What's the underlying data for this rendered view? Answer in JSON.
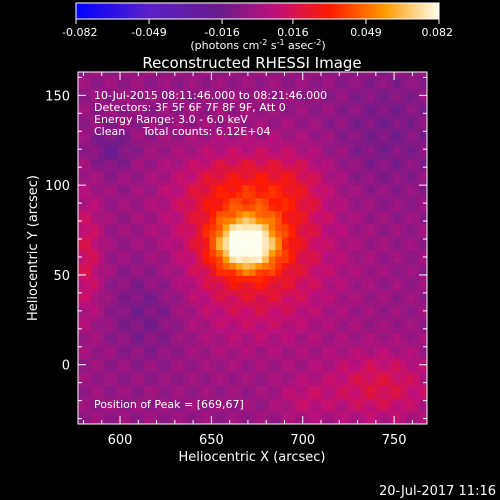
{
  "chart_data": {
    "type": "heatmap",
    "title": "Reconstructed RHESSI Image",
    "xlabel": "Heliocentric X (arcsec)",
    "ylabel": "Heliocentric Y (arcsec)",
    "xlim": [
      577,
      768
    ],
    "ylim": [
      -33,
      163
    ],
    "xticks": [
      600,
      650,
      700,
      750
    ],
    "yticks": [
      0,
      50,
      100,
      150
    ],
    "colorbar": {
      "range": [
        -0.082,
        0.082
      ],
      "tick_labels": [
        "-0.082",
        "-0.049",
        "-0.016",
        "0.016",
        "0.049",
        "0.082"
      ],
      "tick_values": [
        -0.082,
        -0.049,
        -0.016,
        0.016,
        0.049,
        0.082
      ],
      "unit_main": "(photons cm",
      "unit_exp1": "-2",
      "unit_mid": " s",
      "unit_exp2": "-1",
      "unit_tail": " asec",
      "unit_exp3": "-2",
      "unit_close": ")"
    },
    "annotations": [
      "10-Jul-2015 08:11:46.000 to 08:21:46.000",
      "Detectors: 3F 5F 6F 7F 8F 9F, Att 0",
      "Energy Range: 3.0 - 6.0 keV",
      "Clean     Total counts: 6.12E+04"
    ],
    "peak_label": "Position of Peak = [669,67]",
    "peak": [
      669,
      67
    ],
    "sources": [
      {
        "x": 669,
        "y": 67,
        "sx": 12,
        "sy": 10,
        "amp": 0.072
      },
      {
        "x": 675,
        "y": 62,
        "sx": 28,
        "sy": 30,
        "amp": 0.032
      },
      {
        "x": 662,
        "y": 96,
        "sx": 22,
        "sy": 16,
        "amp": 0.022
      },
      {
        "x": 695,
        "y": 100,
        "sx": 14,
        "sy": 14,
        "amp": 0.012
      },
      {
        "x": 742,
        "y": -12,
        "sx": 22,
        "sy": 14,
        "amp": 0.022
      },
      {
        "x": 700,
        "y": -20,
        "sx": 10,
        "sy": 8,
        "amp": 0.01
      },
      {
        "x": 582,
        "y": 60,
        "sx": 6,
        "sy": 25,
        "amp": 0.02
      },
      {
        "x": 595,
        "y": 120,
        "sx": 8,
        "sy": 8,
        "amp": -0.012
      },
      {
        "x": 745,
        "y": 130,
        "sx": 20,
        "sy": 25,
        "amp": -0.008
      },
      {
        "x": 615,
        "y": 30,
        "sx": 14,
        "sy": 18,
        "amp": -0.01
      }
    ]
  },
  "footer": {
    "timestamp": "20-Jul-2017 11:16"
  }
}
